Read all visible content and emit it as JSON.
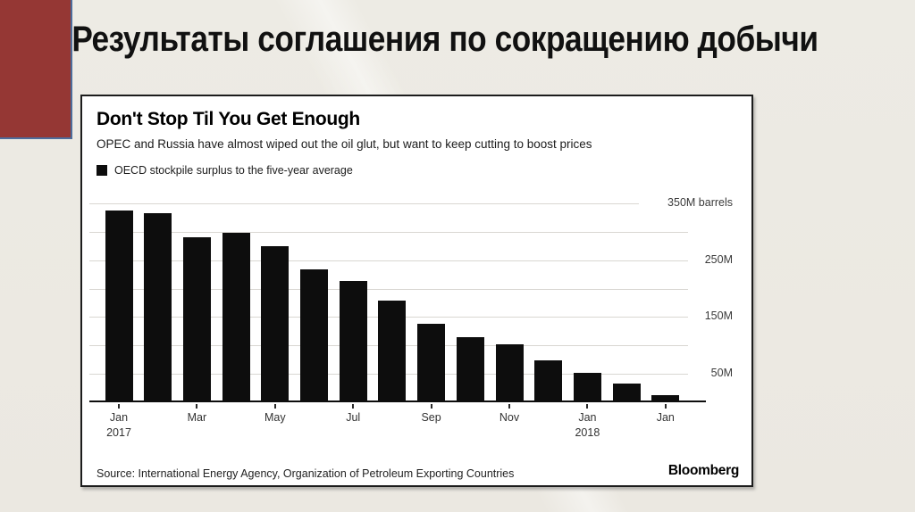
{
  "slide": {
    "title": "Результаты соглашения по сокращению добычи",
    "accent_color": "#953734",
    "accent_border_color": "#4d6d9c",
    "background_color": "#ECEAE3"
  },
  "chart": {
    "title": "Don't Stop Til You Get Enough",
    "subtitle": "OPEC and Russia have almost wiped out the oil glut, but want to keep cutting to boost prices",
    "legend": "OECD stockpile surplus to the five-year average",
    "source": "Source: International Energy Agency, Organization of Petroleum Exporting Countries",
    "brand": "Bloomberg",
    "bar_color": "#0d0d0d",
    "gridline_color": "#d9d7d2"
  },
  "chart_data": {
    "type": "bar",
    "title": "Don't Stop Til You Get Enough",
    "ylabel": "",
    "xlabel": "",
    "unit": "M barrels",
    "ylim": [
      0,
      350
    ],
    "categories": [
      "Jan 2017",
      "",
      "Mar",
      "",
      "May",
      "",
      "Jul",
      "",
      "Sep",
      "",
      "Nov",
      "",
      "Jan 2018",
      "",
      "Jan"
    ],
    "values": [
      335,
      330,
      288,
      295,
      272,
      230,
      211,
      176,
      135,
      111,
      99,
      71,
      49,
      30,
      10
    ],
    "gridline_values": [
      50,
      100,
      150,
      200,
      250,
      300,
      350
    ],
    "y_tick_labels": [
      {
        "value": 350,
        "label": "350M barrels"
      },
      {
        "value": 250,
        "label": "250M"
      },
      {
        "value": 150,
        "label": "150M"
      },
      {
        "value": 50,
        "label": "50M"
      }
    ],
    "x_tick_labels": [
      {
        "index": 0,
        "line1": "Jan",
        "line2": "2017"
      },
      {
        "index": 2,
        "line1": "Mar"
      },
      {
        "index": 4,
        "line1": "May"
      },
      {
        "index": 6,
        "line1": "Jul"
      },
      {
        "index": 8,
        "line1": "Sep"
      },
      {
        "index": 10,
        "line1": "Nov"
      },
      {
        "index": 12,
        "line1": "Jan",
        "line2": "2018"
      },
      {
        "index": 14,
        "line1": "Jan"
      }
    ],
    "legend_entries": [
      "OECD stockpile surplus to the five-year average"
    ],
    "legend_position": "top-left",
    "grid": true
  }
}
